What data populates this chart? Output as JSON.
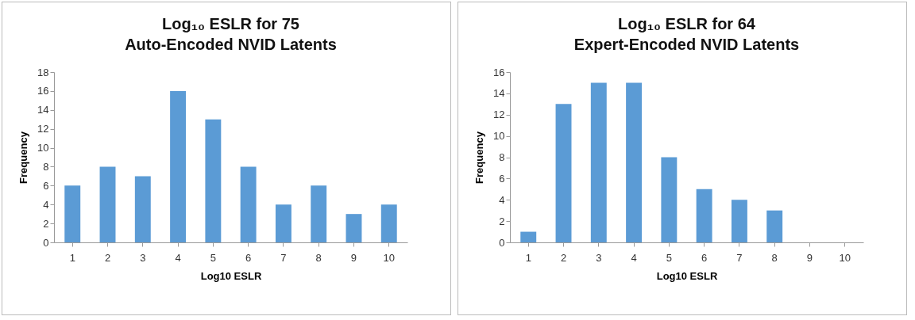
{
  "chart_data": [
    {
      "type": "bar",
      "title": "Log₁₀ ESLR for 75\nAuto-Encoded NVID Latents",
      "xlabel": "Log10 ESLR",
      "ylabel": "Frequency",
      "categories": [
        "1",
        "2",
        "3",
        "4",
        "5",
        "6",
        "7",
        "8",
        "9",
        "10"
      ],
      "values": [
        6,
        8,
        7,
        16,
        13,
        8,
        4,
        6,
        3,
        4
      ],
      "color": "#5b9bd5",
      "ylim": [
        0,
        18
      ],
      "yticks": [
        0,
        2,
        4,
        6,
        8,
        10,
        12,
        14,
        16,
        18
      ],
      "grid": false
    },
    {
      "type": "bar",
      "title": "Log₁₀ ESLR for 64\nExpert-Encoded NVID Latents",
      "xlabel": "Log10 ESLR",
      "ylabel": "Frequency",
      "categories": [
        "1",
        "2",
        "3",
        "4",
        "5",
        "6",
        "7",
        "8",
        "9",
        "10"
      ],
      "values": [
        1,
        13,
        15,
        15,
        8,
        5,
        4,
        3,
        0,
        0
      ],
      "color": "#5b9bd5",
      "ylim": [
        0,
        16
      ],
      "yticks": [
        0,
        2,
        4,
        6,
        8,
        10,
        12,
        14,
        16
      ],
      "grid": false
    }
  ]
}
